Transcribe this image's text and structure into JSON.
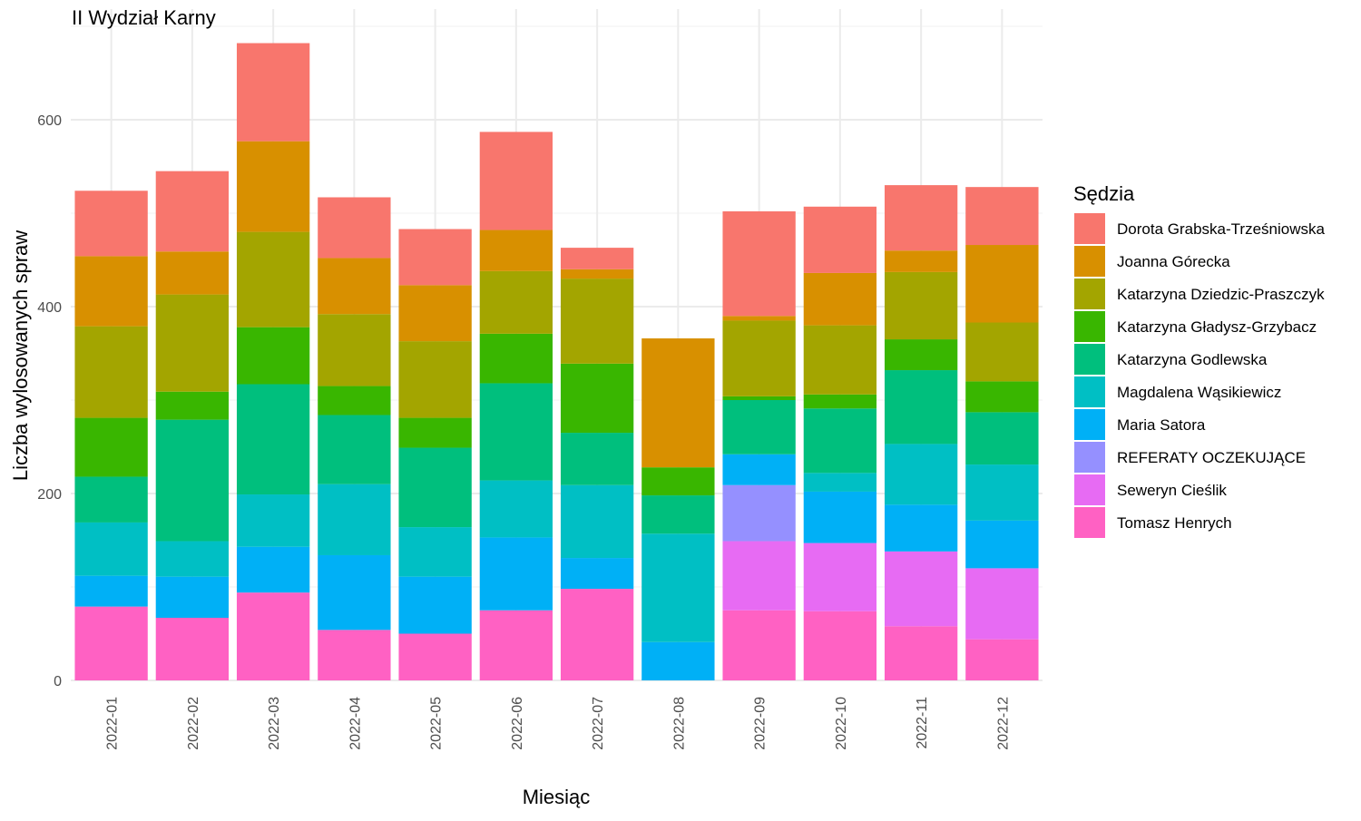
{
  "chart_data": {
    "type": "bar",
    "stacked": true,
    "title": "II Wydział Karny",
    "xlabel": "Miesiąc",
    "ylabel": "Liczba wylosowanych spraw",
    "ylim": [
      0,
      700
    ],
    "yticks": [
      0,
      200,
      400,
      600
    ],
    "grid": true,
    "legend_title": "Sędzia",
    "legend_position": "right",
    "categories": [
      "2022-01",
      "2022-02",
      "2022-03",
      "2022-04",
      "2022-05",
      "2022-06",
      "2022-07",
      "2022-08",
      "2022-09",
      "2022-10",
      "2022-11",
      "2022-12"
    ],
    "series": [
      {
        "name": "Tomasz Henrych",
        "color": "#FF61C3",
        "values": [
          79,
          67,
          94,
          54,
          50,
          75,
          98,
          0,
          75,
          74,
          58,
          44
        ]
      },
      {
        "name": "Seweryn Cieślik",
        "color": "#E76BF3",
        "values": [
          0,
          0,
          0,
          0,
          0,
          0,
          0,
          0,
          74,
          73,
          80,
          76
        ]
      },
      {
        "name": "REFERATY OCZEKUJĄCE",
        "color": "#9590FF",
        "values": [
          0,
          0,
          0,
          0,
          0,
          0,
          0,
          0,
          60,
          0,
          0,
          0
        ]
      },
      {
        "name": "Maria Satora",
        "color": "#00B0F6",
        "values": [
          33,
          44,
          49,
          80,
          61,
          78,
          33,
          41,
          33,
          55,
          50,
          51
        ]
      },
      {
        "name": "Magdalena Wąsikiewicz",
        "color": "#00BFC4",
        "values": [
          57,
          38,
          56,
          76,
          53,
          61,
          78,
          116,
          0,
          20,
          65,
          60
        ]
      },
      {
        "name": "Katarzyna Godlewska",
        "color": "#00BF7D",
        "values": [
          49,
          130,
          118,
          74,
          85,
          104,
          56,
          41,
          58,
          69,
          79,
          56
        ]
      },
      {
        "name": "Katarzyna Gładysz-Grzybacz",
        "color": "#39B600",
        "values": [
          63,
          30,
          61,
          31,
          32,
          53,
          74,
          30,
          4,
          15,
          33,
          33
        ]
      },
      {
        "name": "Katarzyna Dziedzic-Praszczyk",
        "color": "#A3A500",
        "values": [
          98,
          104,
          102,
          77,
          82,
          67,
          91,
          0,
          81,
          74,
          72,
          63
        ]
      },
      {
        "name": "Joanna Górecka",
        "color": "#D89000",
        "values": [
          75,
          46,
          97,
          60,
          60,
          44,
          10,
          138,
          5,
          56,
          23,
          83
        ]
      },
      {
        "name": "Dorota Grabska-Trześniowska",
        "color": "#F8766D",
        "values": [
          70,
          86,
          105,
          65,
          60,
          105,
          23,
          0,
          112,
          71,
          70,
          62
        ]
      }
    ]
  }
}
